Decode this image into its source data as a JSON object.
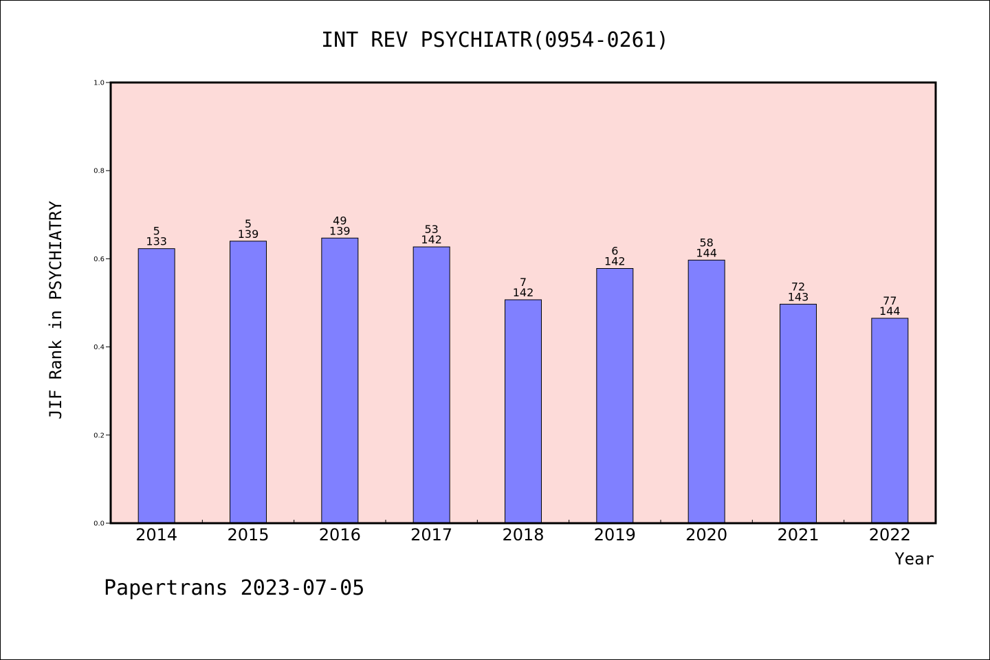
{
  "chart_data": {
    "type": "bar",
    "title": "INT REV PSYCHIATR(0954-0261)",
    "xlabel": "Year",
    "ylabel": "JIF Rank in PSYCHIATRY",
    "ylim": [
      0,
      1.0
    ],
    "yticks": [
      "0.0",
      "0.2",
      "0.4",
      "0.6",
      "0.8",
      "1.0"
    ],
    "categories": [
      "2014",
      "2015",
      "2016",
      "2017",
      "2018",
      "2019",
      "2020",
      "2021",
      "2022"
    ],
    "values": [
      0.623,
      0.64,
      0.647,
      0.627,
      0.507,
      0.578,
      0.597,
      0.497,
      0.465
    ],
    "rank": [
      "5",
      "5",
      "49",
      "53",
      "7",
      "6",
      "58",
      "72",
      "77"
    ],
    "total": [
      "133",
      "139",
      "139",
      "142",
      "142",
      "142",
      "144",
      "143",
      "144"
    ],
    "grid": false,
    "colors": {
      "plot_bg": "#FDDBD9",
      "bar": "#8080FF"
    }
  },
  "footer": "Papertrans 2023-07-05"
}
